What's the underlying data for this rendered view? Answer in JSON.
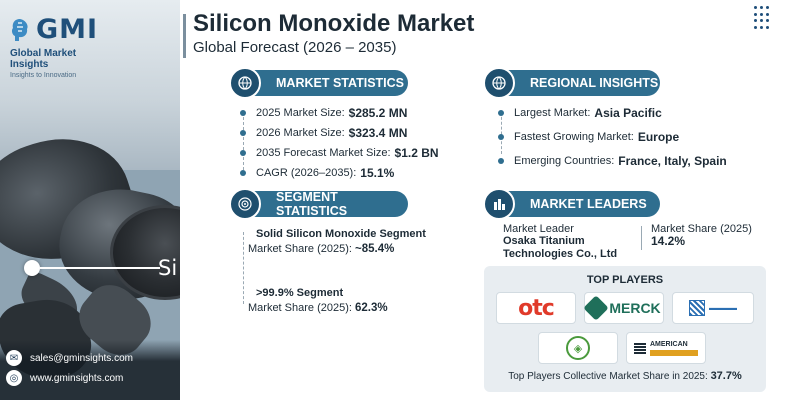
{
  "brand": {
    "logo_text": "GMI",
    "name": "Global Market Insights",
    "tagline": "Insights to Innovation"
  },
  "contact": {
    "email": "sales@gminsights.com",
    "website": "www.gminsights.com"
  },
  "image_label": "Si",
  "header": {
    "title": "Silicon Monoxide Market",
    "subtitle": "Global Forecast (2026 – 2035)"
  },
  "market_statistics": {
    "heading": "MARKET STATISTICS",
    "icon": "globe-chart-icon",
    "items": [
      {
        "label": "2025 Market Size:",
        "value": "$285.2 MN"
      },
      {
        "label": "2026 Market Size:",
        "value": "$323.4 MN"
      },
      {
        "label": "2035 Forecast Market Size:",
        "value": "$1.2 BN"
      },
      {
        "label": "CAGR (2026–2035):",
        "value": "15.1%"
      }
    ]
  },
  "regional_insights": {
    "heading": "REGIONAL INSIGHTS",
    "icon": "globe-icon",
    "items": [
      {
        "label": "Largest Market:",
        "value": "Asia Pacific"
      },
      {
        "label": "Fastest Growing Market:",
        "value": "Europe"
      },
      {
        "label": "Emerging Countries:",
        "value": "France, Italy, Spain"
      }
    ]
  },
  "segment_statistics": {
    "heading": "SEGMENT STATISTICS",
    "icon": "target-icon",
    "items": [
      {
        "name": "Solid Silicon Monoxide Segment",
        "share_label": "Market Share (2025):",
        "share": "~85.4%"
      },
      {
        "name": ">99.9% Segment",
        "share_label": "Market Share (2025):",
        "share": "62.3%"
      }
    ]
  },
  "market_leaders": {
    "heading": "MARKET LEADERS",
    "icon": "building-chart-icon",
    "leader_label": "Market Leader",
    "leader_name_line1": "Osaka Titanium",
    "leader_name_line2": "Technologies Co., Ltd",
    "share_label": "Market Share (2025)",
    "share": "14.2%"
  },
  "top_players": {
    "heading": "TOP PLAYERS",
    "logos": [
      {
        "name": "otc",
        "text": "otc",
        "color": "#e03a2a"
      },
      {
        "name": "merck",
        "text": "MERCK",
        "color": "#1f6f5a"
      },
      {
        "name": "chinese-company",
        "color": "#2b6fb3"
      },
      {
        "name": "seal-company",
        "color": "#4a9a3c"
      },
      {
        "name": "american-elements",
        "text_line1": "AMERICAN",
        "text_line2": "ELEMENTS"
      }
    ],
    "footer_label": "Top Players Collective Market Share in 2025:",
    "footer_value": "37.7%"
  },
  "colors": {
    "accent": "#2f6e8f",
    "accent_dark": "#1f4f6e",
    "text": "#1d2b36",
    "brand": "#1f4f7a"
  }
}
